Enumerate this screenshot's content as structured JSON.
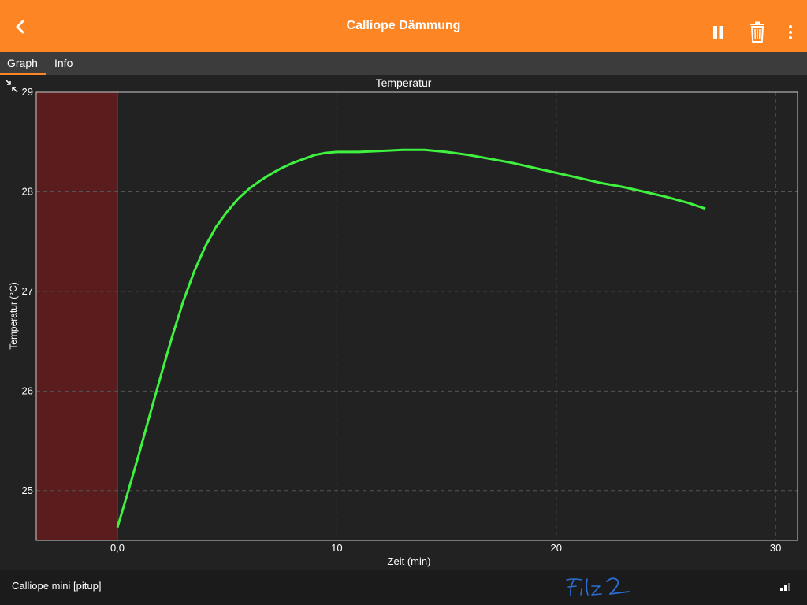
{
  "header": {
    "title": "Calliope Dämmung",
    "back_icon": "chevron-left-icon",
    "pause_icon": "pause-icon",
    "delete_icon": "trash-icon",
    "menu_icon": "more-vertical-icon",
    "bg_color": "#FE8524"
  },
  "tabs": [
    {
      "label": "Graph",
      "active": true
    },
    {
      "label": "Info",
      "active": false
    }
  ],
  "footer": {
    "device": "Calliope mini [pitup]",
    "handwritten_note": "Filz 2",
    "signal_icon": "signal-strength-icon"
  },
  "chart_data": {
    "type": "line",
    "title": "Temperatur",
    "xlabel": "Zeit (min)",
    "ylabel": "Temperatur (°C)",
    "xlim": [
      -3.7,
      31.0
    ],
    "ylim": [
      24.5,
      29.0
    ],
    "xticks": [
      {
        "value": 0,
        "label": "0,0"
      },
      {
        "value": 10,
        "label": "10"
      },
      {
        "value": 20,
        "label": "20"
      },
      {
        "value": 30,
        "label": "30"
      }
    ],
    "yticks": [
      25,
      26,
      27,
      28,
      29
    ],
    "grid": true,
    "shaded_region": {
      "x_from": -3.7,
      "x_to": 0,
      "color": "#5a1c1c"
    },
    "series": [
      {
        "color": "#3ff23f",
        "x": [
          0,
          0.5,
          1,
          1.5,
          2,
          2.5,
          3,
          3.5,
          4,
          4.5,
          5,
          5.5,
          6,
          6.5,
          7,
          7.5,
          8,
          8.5,
          9,
          9.5,
          10,
          11,
          12,
          13,
          14,
          15,
          16,
          17,
          18,
          19,
          20,
          21,
          22,
          23,
          24,
          25,
          26,
          26.8
        ],
        "y": [
          24.63,
          25.0,
          25.38,
          25.78,
          26.17,
          26.55,
          26.9,
          27.2,
          27.45,
          27.65,
          27.8,
          27.93,
          28.03,
          28.11,
          28.18,
          28.24,
          28.29,
          28.33,
          28.37,
          28.39,
          28.4,
          28.4,
          28.41,
          28.42,
          28.42,
          28.4,
          28.37,
          28.33,
          28.29,
          28.24,
          28.19,
          28.14,
          28.09,
          28.05,
          28.0,
          27.95,
          27.89,
          27.83
        ]
      }
    ]
  }
}
